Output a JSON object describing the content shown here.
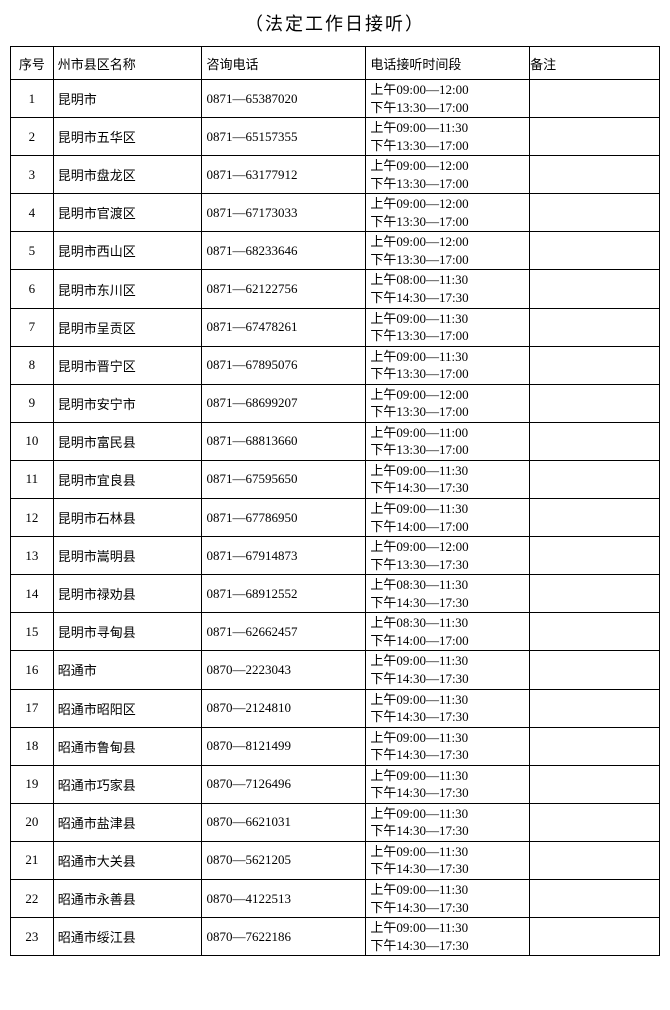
{
  "title": "（法定工作日接听）",
  "table": {
    "headers": {
      "num": "序号",
      "district": "州市县区名称",
      "phone": "咨询电话",
      "time": "电话接听时间段",
      "note": "备注"
    },
    "rows": [
      {
        "num": "1",
        "district": "昆明市",
        "phone": "0871—65387020",
        "time1": "上午09:00—12:00",
        "time2": "下午13:30—17:00",
        "note": ""
      },
      {
        "num": "2",
        "district": "昆明市五华区",
        "phone": "0871—65157355",
        "time1": "上午09:00—11:30",
        "time2": "下午13:30—17:00",
        "note": ""
      },
      {
        "num": "3",
        "district": "昆明市盘龙区",
        "phone": "0871—63177912",
        "time1": "上午09:00—12:00",
        "time2": "下午13:30—17:00",
        "note": ""
      },
      {
        "num": "4",
        "district": "昆明市官渡区",
        "phone": "0871—67173033",
        "time1": "上午09:00—12:00",
        "time2": "下午13:30—17:00",
        "note": ""
      },
      {
        "num": "5",
        "district": "昆明市西山区",
        "phone": "0871—68233646",
        "time1": "上午09:00—12:00",
        "time2": "下午13:30—17:00",
        "note": ""
      },
      {
        "num": "6",
        "district": "昆明市东川区",
        "phone": "0871—62122756",
        "time1": "上午08:00—11:30",
        "time2": "下午14:30—17:30",
        "note": ""
      },
      {
        "num": "7",
        "district": "昆明市呈贡区",
        "phone": "0871—67478261",
        "time1": "上午09:00—11:30",
        "time2": "下午13:30—17:00",
        "note": ""
      },
      {
        "num": "8",
        "district": "昆明市晋宁区",
        "phone": "0871—67895076",
        "time1": "上午09:00—11:30",
        "time2": "下午13:30—17:00",
        "note": ""
      },
      {
        "num": "9",
        "district": "昆明市安宁市",
        "phone": "0871—68699207",
        "time1": "上午09:00—12:00",
        "time2": "下午13:30—17:00",
        "note": ""
      },
      {
        "num": "10",
        "district": "昆明市富民县",
        "phone": "0871—68813660",
        "time1": "上午09:00—11:00",
        "time2": "下午13:30—17:00",
        "note": ""
      },
      {
        "num": "11",
        "district": "昆明市宜良县",
        "phone": "0871—67595650",
        "time1": "上午09:00—11:30",
        "time2": "下午14:30—17:30",
        "note": ""
      },
      {
        "num": "12",
        "district": "昆明市石林县",
        "phone": "0871—67786950",
        "time1": "上午09:00—11:30",
        "time2": "下午14:00—17:00",
        "note": ""
      },
      {
        "num": "13",
        "district": "昆明市嵩明县",
        "phone": "0871—67914873",
        "time1": "上午09:00—12:00",
        "time2": "下午13:30—17:30",
        "note": ""
      },
      {
        "num": "14",
        "district": "昆明市禄劝县",
        "phone": "0871—68912552",
        "time1": "上午08:30—11:30",
        "time2": "下午14:30—17:30",
        "note": ""
      },
      {
        "num": "15",
        "district": "昆明市寻甸县",
        "phone": "0871—62662457",
        "time1": "上午08:30—11:30",
        "time2": "下午14:00—17:00",
        "note": ""
      },
      {
        "num": "16",
        "district": "昭通市",
        "phone": "0870—2223043",
        "time1": "上午09:00—11:30",
        "time2": "下午14:30—17:30",
        "note": ""
      },
      {
        "num": "17",
        "district": "昭通市昭阳区",
        "phone": "0870—2124810",
        "time1": "上午09:00—11:30",
        "time2": "下午14:30—17:30",
        "note": ""
      },
      {
        "num": "18",
        "district": "昭通市鲁甸县",
        "phone": "0870—8121499",
        "time1": "上午09:00—11:30",
        "time2": "下午14:30—17:30",
        "note": ""
      },
      {
        "num": "19",
        "district": "昭通市巧家县",
        "phone": "0870—7126496",
        "time1": "上午09:00—11:30",
        "time2": "下午14:30—17:30",
        "note": ""
      },
      {
        "num": "20",
        "district": "昭通市盐津县",
        "phone": "0870—6621031",
        "time1": "上午09:00—11:30",
        "time2": "下午14:30—17:30",
        "note": ""
      },
      {
        "num": "21",
        "district": "昭通市大关县",
        "phone": "0870—5621205",
        "time1": "上午09:00—11:30",
        "time2": "下午14:30—17:30",
        "note": ""
      },
      {
        "num": "22",
        "district": "昭通市永善县",
        "phone": "0870—4122513",
        "time1": "上午09:00—11:30",
        "time2": "下午14:30—17:30",
        "note": ""
      },
      {
        "num": "23",
        "district": "昭通市绥江县",
        "phone": "0870—7622186",
        "time1": "上午09:00—11:30",
        "time2": "下午14:30—17:30",
        "note": ""
      }
    ]
  }
}
